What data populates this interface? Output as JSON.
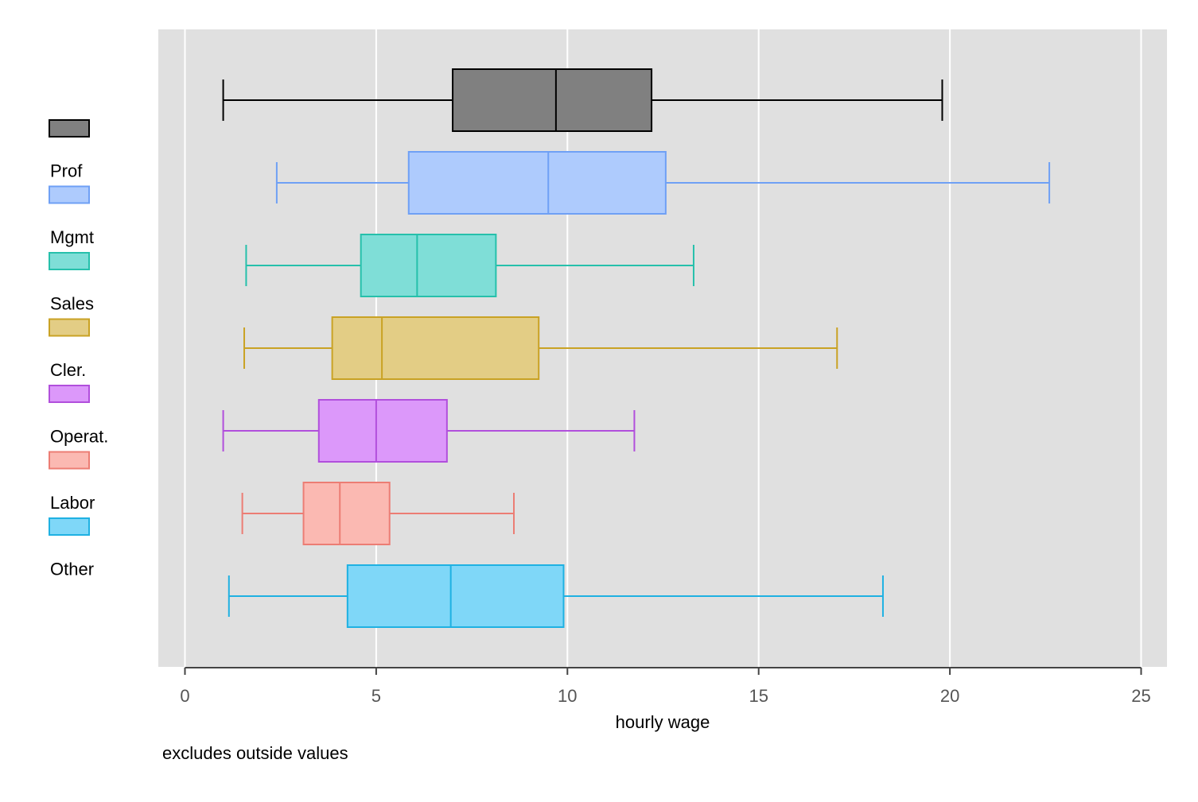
{
  "chart_data": {
    "type": "box",
    "orientation": "horizontal",
    "xlabel": "hourly wage",
    "note": "excludes outside values",
    "xlim": [
      0,
      25
    ],
    "xticks": [
      0,
      5,
      10,
      15,
      20,
      25
    ],
    "grid": true,
    "legend_position": "left",
    "series": [
      {
        "name": "",
        "color": "#000000",
        "fill": "#808080",
        "whisker_low": 1.0,
        "q1": 7.0,
        "median": 9.7,
        "q3": 12.2,
        "whisker_high": 19.8
      },
      {
        "name": "Prof",
        "color": "#6fa0f5",
        "fill": "#aecbfd",
        "whisker_low": 2.4,
        "q1": 5.85,
        "median": 9.5,
        "q3": 12.57,
        "whisker_high": 22.6
      },
      {
        "name": "Mgmt",
        "color": "#26c0ab",
        "fill": "#7fded7",
        "whisker_low": 1.6,
        "q1": 4.6,
        "median": 6.07,
        "q3": 8.13,
        "whisker_high": 13.3
      },
      {
        "name": "Sales",
        "color": "#c9a224",
        "fill": "#e3cd85",
        "whisker_low": 1.55,
        "q1": 3.85,
        "median": 5.15,
        "q3": 9.25,
        "whisker_high": 17.05
      },
      {
        "name": "Cler.",
        "color": "#b14fdc",
        "fill": "#dc98fa",
        "whisker_low": 1.0,
        "q1": 3.5,
        "median": 5.0,
        "q3": 6.85,
        "whisker_high": 11.75
      },
      {
        "name": "Operat.",
        "color": "#ec7d74",
        "fill": "#fbb9b2",
        "whisker_low": 1.5,
        "q1": 3.1,
        "median": 4.05,
        "q3": 5.35,
        "whisker_high": 8.6
      },
      {
        "name": "Labor",
        "color": "#1fb1e2",
        "fill": "#7fd7f8",
        "whisker_low": 1.15,
        "q1": 4.25,
        "median": 6.95,
        "q3": 9.9,
        "whisker_high": 18.25
      },
      {
        "name": "Other",
        "color": "",
        "fill": "",
        "whisker_low": null,
        "q1": null,
        "median": null,
        "q3": null,
        "whisker_high": null
      }
    ],
    "colors": {
      "plot_background": "#e0e0e0",
      "gridline": "#ffffff",
      "axis": "#444444"
    }
  }
}
